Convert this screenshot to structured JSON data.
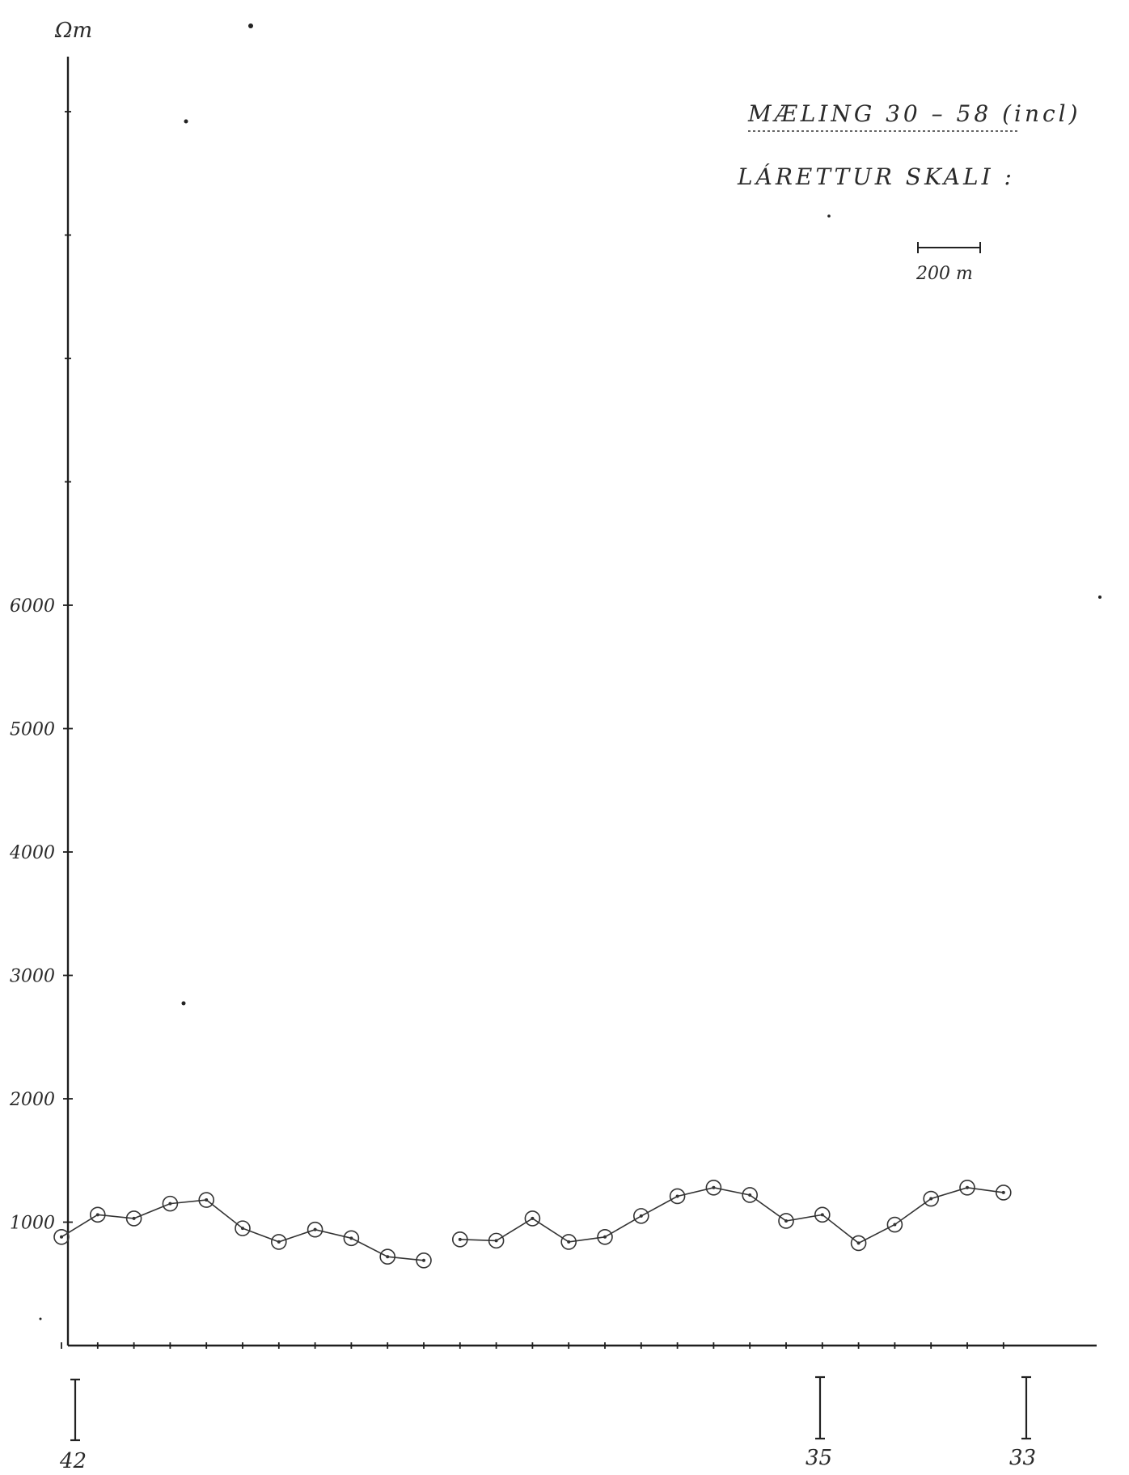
{
  "chart_data": {
    "type": "line",
    "ylabel": "Ωm",
    "title": "MÆLING 30 – 58 (incl)",
    "subtitle": "LÁRETTUR SKALI :",
    "scale_label": "200 m",
    "ylim": [
      0,
      10000
    ],
    "yticks": [
      1000,
      2000,
      3000,
      4000,
      5000,
      6000
    ],
    "ytick_labels": [
      "1000",
      "2000",
      "3000",
      "4000",
      "5000",
      "6000"
    ],
    "stations": [
      "42",
      "35",
      "33"
    ],
    "series": [
      {
        "points": [
          {
            "x": 0,
            "y": 880
          },
          {
            "x": 1,
            "y": 1060
          },
          {
            "x": 2,
            "y": 1030
          },
          {
            "x": 3,
            "y": 1150
          },
          {
            "x": 4,
            "y": 1180
          },
          {
            "x": 5,
            "y": 950
          },
          {
            "x": 6,
            "y": 840
          },
          {
            "x": 7,
            "y": 940
          },
          {
            "x": 8,
            "y": 870
          },
          {
            "x": 9,
            "y": 720
          },
          {
            "x": 10,
            "y": 690
          }
        ]
      },
      {
        "points": [
          {
            "x": 11,
            "y": 860
          },
          {
            "x": 12,
            "y": 850
          },
          {
            "x": 13,
            "y": 1030
          },
          {
            "x": 14,
            "y": 840
          },
          {
            "x": 15,
            "y": 880
          },
          {
            "x": 16,
            "y": 1050
          },
          {
            "x": 17,
            "y": 1210
          },
          {
            "x": 18,
            "y": 1280
          },
          {
            "x": 19,
            "y": 1220
          },
          {
            "x": 20,
            "y": 1010
          },
          {
            "x": 21,
            "y": 1060
          },
          {
            "x": 22,
            "y": 830
          },
          {
            "x": 23,
            "y": 980
          },
          {
            "x": 24,
            "y": 1190
          },
          {
            "x": 25,
            "y": 1280
          },
          {
            "x": 26,
            "y": 1240
          }
        ]
      }
    ]
  }
}
